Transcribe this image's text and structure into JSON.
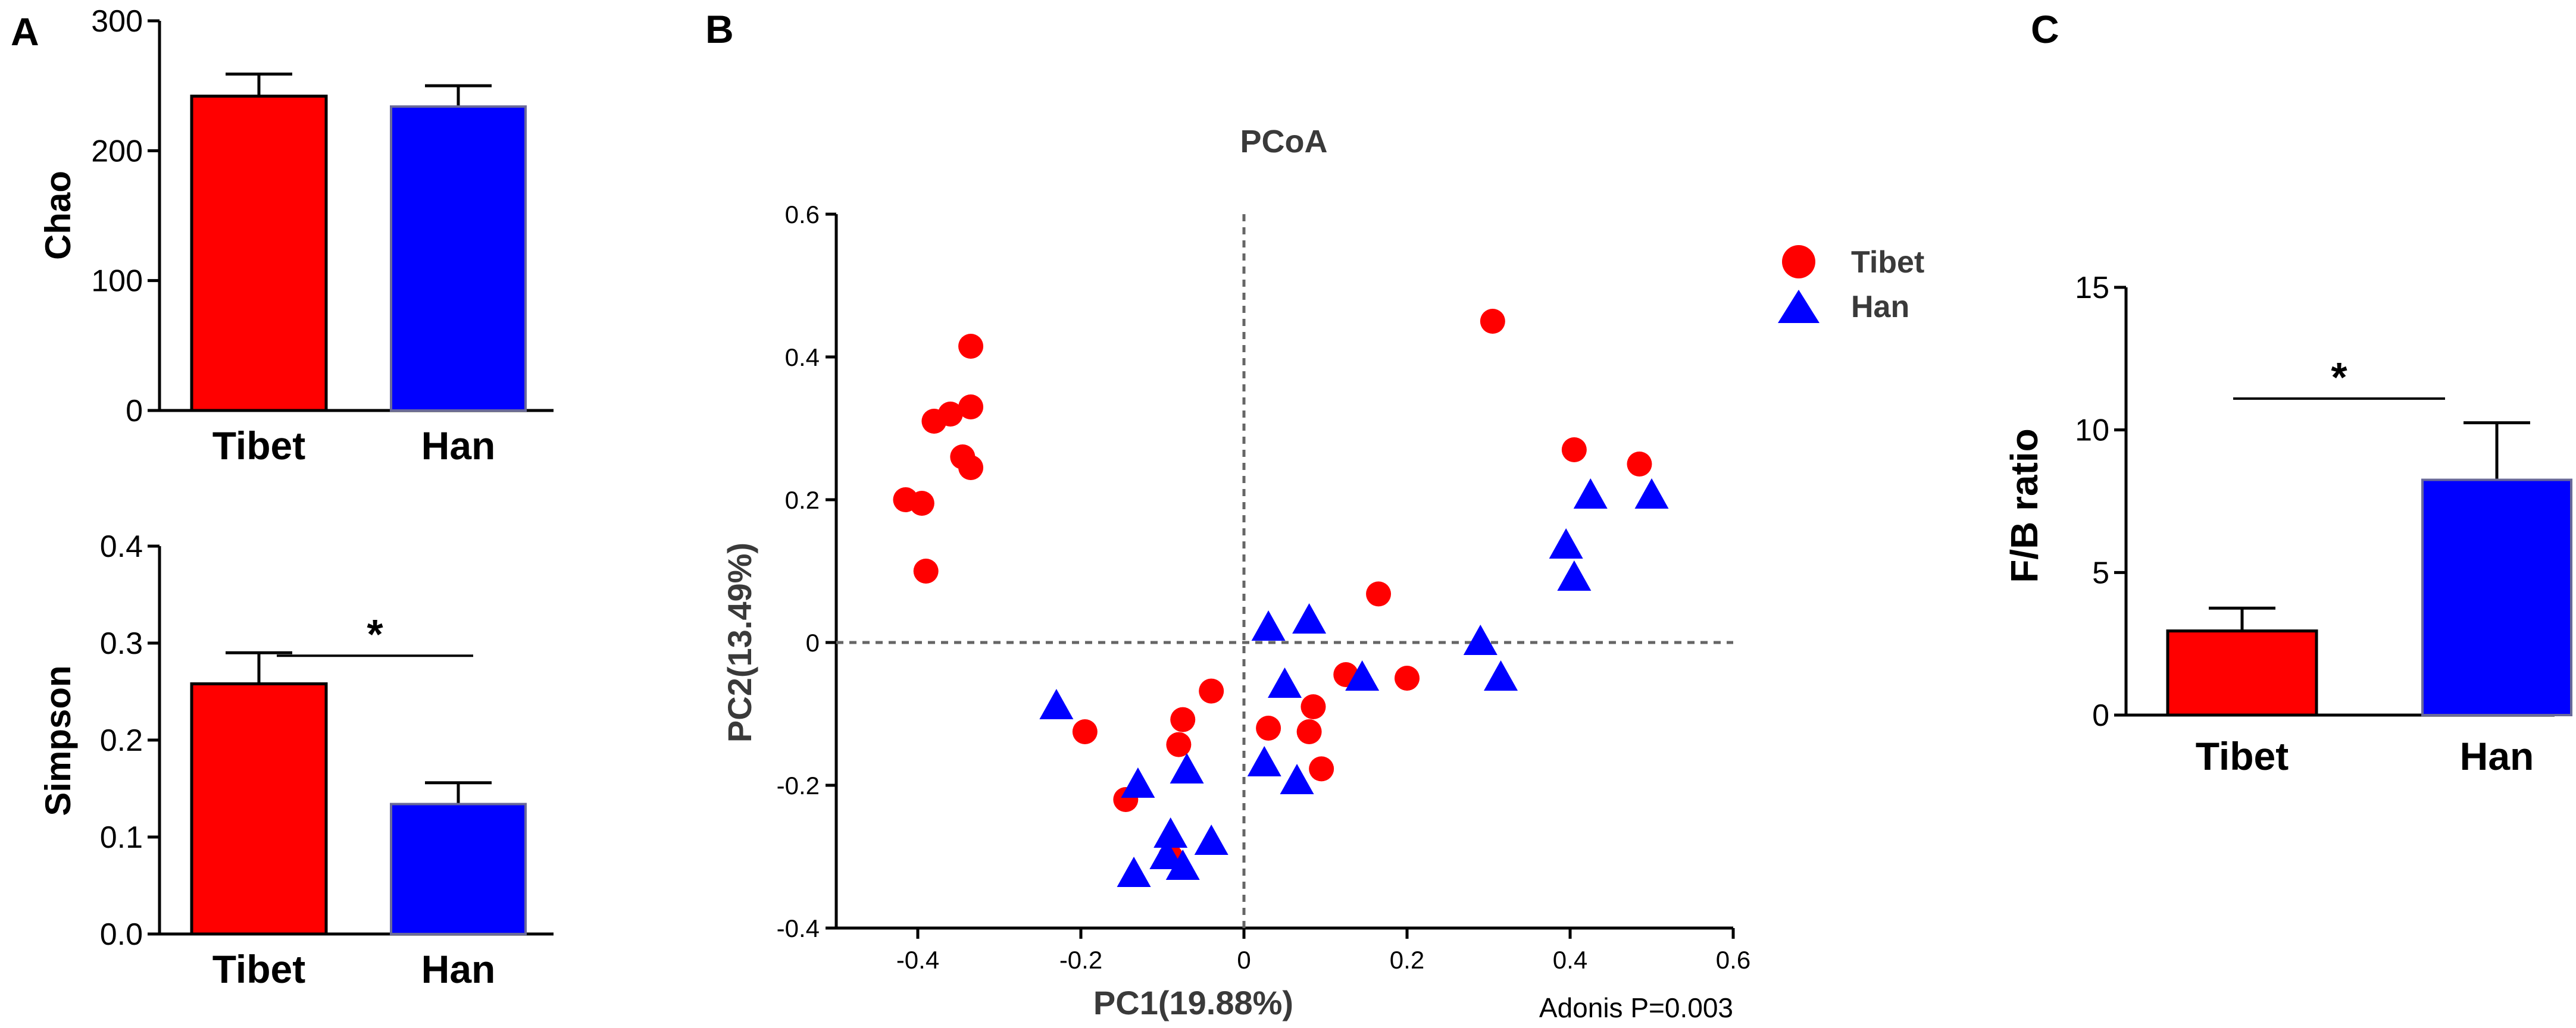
{
  "colors": {
    "tibet": "#ff0000",
    "han": "#0000ff",
    "axis": "#000000",
    "dash": "#666666"
  },
  "panels": {
    "a": "A",
    "b": "B",
    "c": "C"
  },
  "chart_data": [
    {
      "id": "chao",
      "type": "bar",
      "panel": "A",
      "categories": [
        "Tibet",
        "Han"
      ],
      "values": [
        242,
        234
      ],
      "errors": [
        17,
        16
      ],
      "ylabel": "Chao",
      "ylim": [
        0,
        300
      ],
      "yticks": [
        0,
        100,
        200,
        300
      ],
      "ytick_labels": [
        "0",
        "100",
        "200",
        "300"
      ],
      "significance": null
    },
    {
      "id": "simpson",
      "type": "bar",
      "panel": "A",
      "categories": [
        "Tibet",
        "Han"
      ],
      "values": [
        0.258,
        0.134
      ],
      "errors": [
        0.032,
        0.022
      ],
      "ylabel": "Simpson",
      "ylim": [
        0,
        0.4
      ],
      "yticks": [
        0,
        0.1,
        0.2,
        0.3,
        0.4
      ],
      "ytick_labels": [
        "0.0",
        "0.1",
        "0.2",
        "0.3",
        "0.4"
      ],
      "significance": {
        "label": "*",
        "level": 0.287
      }
    },
    {
      "id": "pcoa",
      "type": "scatter",
      "panel": "B",
      "title": "PCoA",
      "xlabel": "PC1(19.88%)",
      "ylabel": "PC2(13.49%)",
      "xlim": [
        -0.5,
        0.6
      ],
      "ylim": [
        -0.4,
        0.6
      ],
      "xticks": [
        -0.4,
        -0.2,
        0,
        0.2,
        0.4,
        0.6
      ],
      "xtick_labels": [
        "-0.4",
        "-0.2",
        "0",
        "0.2",
        "0.4",
        "0.6"
      ],
      "yticks": [
        -0.4,
        -0.2,
        0,
        0.2,
        0.4,
        0.6
      ],
      "ytick_labels": [
        "-0.4",
        "-0.2",
        "0",
        "0.2",
        "0.4",
        "0.6"
      ],
      "legend": [
        "Tibet",
        "Han"
      ],
      "legend_position": "top-right",
      "annotation": "Adonis P=0.003",
      "series": [
        {
          "name": "Tibet",
          "marker": "circle",
          "points": [
            [
              -0.335,
              0.415
            ],
            [
              -0.335,
              0.33
            ],
            [
              -0.36,
              0.32
            ],
            [
              -0.38,
              0.31
            ],
            [
              -0.345,
              0.26
            ],
            [
              -0.335,
              0.245
            ],
            [
              -0.415,
              0.2
            ],
            [
              -0.395,
              0.195
            ],
            [
              -0.39,
              0.1
            ],
            [
              -0.195,
              -0.125
            ],
            [
              -0.075,
              -0.108
            ],
            [
              -0.04,
              -0.068
            ],
            [
              -0.08,
              -0.143
            ],
            [
              -0.145,
              -0.22
            ],
            [
              -0.09,
              -0.3
            ],
            [
              0.03,
              -0.12
            ],
            [
              0.08,
              -0.125
            ],
            [
              0.085,
              -0.09
            ],
            [
              0.095,
              -0.177
            ],
            [
              0.165,
              0.068
            ],
            [
              0.125,
              -0.045
            ],
            [
              0.2,
              -0.05
            ],
            [
              0.305,
              0.45
            ],
            [
              0.405,
              0.27
            ],
            [
              0.485,
              0.25
            ]
          ]
        },
        {
          "name": "Han",
          "marker": "triangle",
          "points": [
            [
              -0.23,
              -0.09
            ],
            [
              -0.13,
              -0.2
            ],
            [
              -0.07,
              -0.18
            ],
            [
              -0.09,
              -0.27
            ],
            [
              -0.04,
              -0.28
            ],
            [
              -0.095,
              -0.3
            ],
            [
              -0.075,
              -0.315
            ],
            [
              -0.135,
              -0.325
            ],
            [
              0.03,
              0.02
            ],
            [
              0.08,
              0.03
            ],
            [
              0.05,
              -0.06
            ],
            [
              0.145,
              -0.05
            ],
            [
              0.025,
              -0.17
            ],
            [
              0.065,
              -0.195
            ],
            [
              0.29,
              0.0
            ],
            [
              0.315,
              -0.05
            ],
            [
              0.395,
              0.135
            ],
            [
              0.405,
              0.09
            ],
            [
              0.425,
              0.205
            ],
            [
              0.5,
              0.205
            ]
          ]
        }
      ]
    },
    {
      "id": "fb_ratio",
      "type": "bar",
      "panel": "C",
      "categories": [
        "Tibet",
        "Han"
      ],
      "values": [
        2.95,
        8.25
      ],
      "errors": [
        0.8,
        2.0
      ],
      "ylabel": "F/B ratio",
      "ylim": [
        0,
        15
      ],
      "yticks": [
        0,
        5,
        10,
        15
      ],
      "ytick_labels": [
        "0",
        "5",
        "10",
        "15"
      ],
      "significance": {
        "label": "*",
        "level": 11.1
      }
    }
  ]
}
